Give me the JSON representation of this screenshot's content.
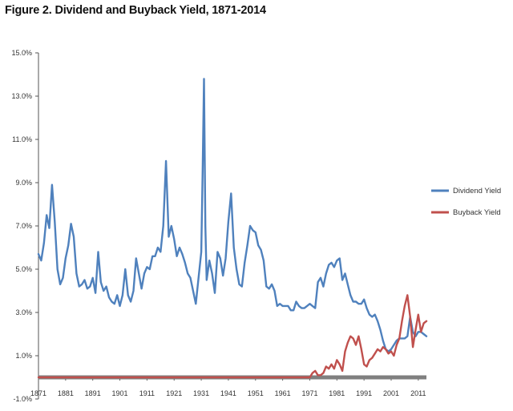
{
  "chart_data": {
    "type": "line",
    "title": "Figure 2. Dividend and Buyback Yield, 1871-2014",
    "xlabel": "",
    "ylabel": "",
    "xlim": [
      1871,
      2014
    ],
    "ylim": [
      -1.0,
      15.0
    ],
    "y_ticks": [
      -1.0,
      1.0,
      3.0,
      5.0,
      7.0,
      9.0,
      11.0,
      13.0,
      15.0
    ],
    "y_tick_labels": [
      "-1.0%",
      "1.0%",
      "3.0%",
      "5.0%",
      "7.0%",
      "9.0%",
      "11.0%",
      "13.0%",
      "15.0%"
    ],
    "x_ticks": [
      1871,
      1881,
      1891,
      1901,
      1911,
      1921,
      1931,
      1941,
      1951,
      1961,
      1971,
      1981,
      1991,
      2001,
      2011
    ],
    "x_tick_labels": [
      "1871",
      "1881",
      "1891",
      "1901",
      "1911",
      "1921",
      "1931",
      "1941",
      "1951",
      "1961",
      "1971",
      "1981",
      "1991",
      "2001",
      "2011"
    ],
    "zero_line_color": "#7f7f7f",
    "legend_position": "right",
    "series": [
      {
        "name": "Dividend Yield",
        "color": "#4f81bd",
        "x": [
          1871,
          1872,
          1873,
          1874,
          1875,
          1876,
          1877,
          1878,
          1879,
          1880,
          1881,
          1882,
          1883,
          1884,
          1885,
          1886,
          1887,
          1888,
          1889,
          1890,
          1891,
          1892,
          1893,
          1894,
          1895,
          1896,
          1897,
          1898,
          1899,
          1900,
          1901,
          1902,
          1903,
          1904,
          1905,
          1906,
          1907,
          1908,
          1909,
          1910,
          1911,
          1912,
          1913,
          1914,
          1915,
          1916,
          1917,
          1918,
          1919,
          1920,
          1921,
          1922,
          1923,
          1924,
          1925,
          1926,
          1927,
          1928,
          1929,
          1930,
          1931,
          1931.5,
          1932,
          1932.5,
          1933,
          1934,
          1935,
          1936,
          1937,
          1938,
          1939,
          1940,
          1941,
          1942,
          1943,
          1944,
          1945,
          1946,
          1947,
          1948,
          1949,
          1950,
          1951,
          1952,
          1953,
          1954,
          1955,
          1956,
          1957,
          1958,
          1959,
          1960,
          1961,
          1962,
          1963,
          1964,
          1965,
          1966,
          1967,
          1968,
          1969,
          1970,
          1971,
          1972,
          1973,
          1974,
          1975,
          1976,
          1977,
          1978,
          1979,
          1980,
          1981,
          1982,
          1983,
          1984,
          1985,
          1986,
          1987,
          1988,
          1989,
          1990,
          1991,
          1992,
          1993,
          1994,
          1995,
          1996,
          1997,
          1998,
          1999,
          2000,
          2001,
          2002,
          2003,
          2004,
          2005,
          2006,
          2007,
          2008,
          2009,
          2010,
          2011,
          2012,
          2013,
          2014
        ],
        "values": [
          5.7,
          5.4,
          6.2,
          7.5,
          6.9,
          8.9,
          7.2,
          5.0,
          4.3,
          4.6,
          5.5,
          6.1,
          7.1,
          6.5,
          4.8,
          4.2,
          4.3,
          4.5,
          4.1,
          4.2,
          4.6,
          3.9,
          5.8,
          4.4,
          4.0,
          4.2,
          3.7,
          3.5,
          3.4,
          3.8,
          3.3,
          3.8,
          5.0,
          3.8,
          3.5,
          4.0,
          5.5,
          4.8,
          4.1,
          4.8,
          5.1,
          5.0,
          5.6,
          5.6,
          6.0,
          5.8,
          7.0,
          10.0,
          6.5,
          7.0,
          6.4,
          5.6,
          6.0,
          5.7,
          5.3,
          4.8,
          4.6,
          4.0,
          3.4,
          4.6,
          5.8,
          9.5,
          13.8,
          7.0,
          4.5,
          5.4,
          4.8,
          3.9,
          5.8,
          5.5,
          4.7,
          5.5,
          7.2,
          8.5,
          6.0,
          5.0,
          4.3,
          4.2,
          5.3,
          6.1,
          7.0,
          6.8,
          6.7,
          6.1,
          5.9,
          5.4,
          4.2,
          4.1,
          4.3,
          4.0,
          3.3,
          3.4,
          3.3,
          3.3,
          3.3,
          3.1,
          3.1,
          3.5,
          3.3,
          3.2,
          3.2,
          3.3,
          3.4,
          3.3,
          3.2,
          4.4,
          4.6,
          4.2,
          4.8,
          5.2,
          5.3,
          5.1,
          5.4,
          5.5,
          4.5,
          4.8,
          4.3,
          3.8,
          3.5,
          3.5,
          3.4,
          3.4,
          3.6,
          3.2,
          2.9,
          2.8,
          2.9,
          2.6,
          2.2,
          1.7,
          1.3,
          1.2,
          1.3,
          1.5,
          1.7,
          1.8,
          1.8,
          1.8,
          1.9,
          2.8,
          2.1,
          1.9,
          2.1,
          2.1,
          2.0,
          1.9
        ],
        "series_role": "dividend"
      },
      {
        "name": "Buyback Yield",
        "color": "#c0504d",
        "x": [
          1871,
          1971,
          1972,
          1973,
          1974,
          1975,
          1976,
          1977,
          1978,
          1979,
          1980,
          1981,
          1982,
          1983,
          1984,
          1985,
          1986,
          1987,
          1988,
          1989,
          1990,
          1991,
          1992,
          1993,
          1994,
          1995,
          1996,
          1997,
          1998,
          1999,
          2000,
          2001,
          2002,
          2003,
          2004,
          2005,
          2006,
          2007,
          2008,
          2009,
          2010,
          2011,
          2012,
          2013,
          2014
        ],
        "values": [
          0.0,
          0.0,
          0.2,
          0.3,
          0.1,
          0.1,
          0.2,
          0.5,
          0.4,
          0.6,
          0.4,
          0.8,
          0.6,
          0.3,
          1.2,
          1.6,
          1.9,
          1.8,
          1.5,
          1.9,
          1.3,
          0.6,
          0.5,
          0.8,
          0.9,
          1.1,
          1.3,
          1.2,
          1.4,
          1.3,
          1.1,
          1.2,
          1.0,
          1.5,
          1.8,
          2.6,
          3.3,
          3.8,
          2.8,
          1.4,
          2.2,
          2.9,
          2.1,
          2.5,
          2.6
        ],
        "series_role": "buyback"
      }
    ]
  }
}
